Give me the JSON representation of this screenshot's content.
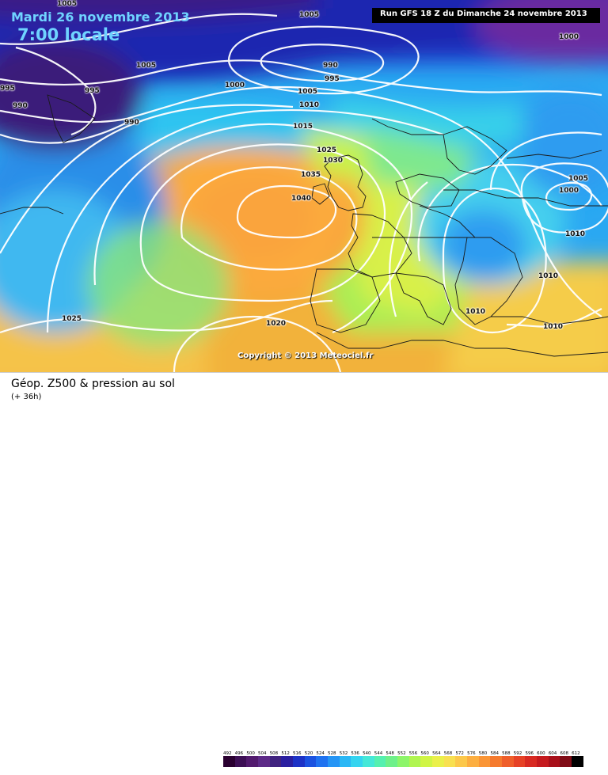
{
  "header": {
    "date": "Mardi 26 novembre 2013",
    "local_time": "7:00 locale",
    "run": "Run GFS 18 Z du Dimanche 24 novembre 2013"
  },
  "copyright": "Copyright © 2013 Meteociel.fr",
  "footer": {
    "title": "Géop. Z500 & pression au sol",
    "subtitle": "(+ 36h)"
  },
  "legend": {
    "values": [
      "492",
      "496",
      "500",
      "504",
      "508",
      "512",
      "516",
      "520",
      "524",
      "528",
      "532",
      "536",
      "540",
      "544",
      "548",
      "552",
      "556",
      "560",
      "564",
      "568",
      "572",
      "576",
      "580",
      "584",
      "588",
      "592",
      "596",
      "600",
      "604",
      "608",
      "612"
    ],
    "colors": [
      "#2a0030",
      "#3d0f55",
      "#521a6e",
      "#5d2a87",
      "#40237f",
      "#2a1fa0",
      "#1d32c6",
      "#1b52e0",
      "#1f72f0",
      "#2595f5",
      "#2ab7f5",
      "#35d4f0",
      "#45e8d8",
      "#55f0b0",
      "#6ef08a",
      "#8cf56a",
      "#b0f550",
      "#d0f545",
      "#eaf04a",
      "#f8e050",
      "#fcc84a",
      "#fcae40",
      "#fa9535",
      "#f57a2e",
      "#ef5e2a",
      "#e64226",
      "#d82a22",
      "#c51a1e",
      "#a8101a",
      "#800c16",
      "#000000"
    ]
  },
  "isobars": [
    {
      "value": "1005",
      "cls": "iso-1005a"
    },
    {
      "value": "1005",
      "cls": "iso-1005b"
    },
    {
      "value": "1000",
      "cls": "iso-1000a"
    },
    {
      "value": "995",
      "cls": "iso-995a"
    },
    {
      "value": "990",
      "cls": "iso-990a"
    },
    {
      "value": "995",
      "cls": "iso-995b"
    },
    {
      "value": "990",
      "cls": "iso-990b"
    },
    {
      "value": "1005",
      "cls": "iso-1005c"
    },
    {
      "value": "1000",
      "cls": "iso-1000b"
    },
    {
      "value": "990",
      "cls": "iso-990c"
    },
    {
      "value": "995",
      "cls": "iso-995c"
    },
    {
      "value": "1005",
      "cls": "iso-1005d"
    },
    {
      "value": "1010",
      "cls": "iso-1010a"
    },
    {
      "value": "1015",
      "cls": "iso-1015a"
    },
    {
      "value": "1025",
      "cls": "iso-1025a"
    },
    {
      "value": "1030",
      "cls": "iso-1030a"
    },
    {
      "value": "1035",
      "cls": "iso-1035a"
    },
    {
      "value": "1040",
      "cls": "iso-1040a"
    },
    {
      "value": "1005",
      "cls": "iso-1005e"
    },
    {
      "value": "1000",
      "cls": "iso-1000c"
    },
    {
      "value": "1010",
      "cls": "iso-1010b"
    },
    {
      "value": "1010",
      "cls": "iso-1010c"
    },
    {
      "value": "1010",
      "cls": "iso-1010d"
    },
    {
      "value": "1010",
      "cls": "iso-1010e"
    },
    {
      "value": "1025",
      "cls": "iso-1025b"
    },
    {
      "value": "1020",
      "cls": "iso-1020a"
    },
    {
      "value": "1000",
      "cls": "iso-1000d"
    }
  ]
}
